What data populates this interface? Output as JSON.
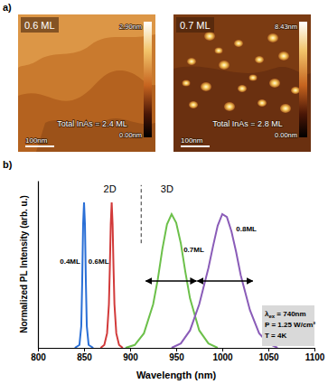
{
  "panel_labels": [
    "a)",
    "b)"
  ],
  "afm_images": [
    {
      "coverage": "0.6 ML",
      "colorbar_max": "2.90nm",
      "colorbar_min": "0.00nm",
      "total": "Total InAs = 2.4 ML",
      "scale_bar": "100nm"
    },
    {
      "coverage": "0.7 ML",
      "colorbar_max": "8.43nm",
      "colorbar_min": "0.00nm",
      "total": "Total InAs = 2.8 ML",
      "scale_bar": "100nm"
    }
  ],
  "chart_data": {
    "type": "line",
    "xlabel": "Wavelength (nm)",
    "ylabel": "Normalized PL Intensity (arb. u.)",
    "xlim": [
      800,
      1100
    ],
    "xticks": [
      800,
      850,
      900,
      950,
      1000,
      1050,
      1100
    ],
    "ylim": [
      0,
      1.15
    ],
    "yticks": [],
    "tick_labels": "x",
    "series": [
      {
        "name": "0.4ML",
        "color": "#2a6fd6",
        "label_pos": [
          846,
          0.58
        ],
        "x": [
          840,
          845,
          847,
          848,
          849,
          850,
          851,
          852,
          853,
          855,
          860
        ],
        "values": [
          0,
          0.02,
          0.15,
          0.45,
          0.85,
          1.0,
          0.85,
          0.45,
          0.15,
          0.02,
          0
        ]
      },
      {
        "name": "0.6ML",
        "color": "#d23a3a",
        "label_pos": [
          877,
          0.58
        ],
        "x": [
          868,
          872,
          875,
          877,
          878,
          879,
          880,
          881,
          882,
          883,
          885,
          888,
          892
        ],
        "values": [
          0,
          0.02,
          0.1,
          0.3,
          0.55,
          0.85,
          1.0,
          0.85,
          0.55,
          0.3,
          0.1,
          0.02,
          0
        ]
      },
      {
        "name": "0.7ML",
        "color": "#6cc04a",
        "label_pos": [
          958,
          0.66
        ],
        "fwhm": [
          917,
          972
        ],
        "x": [
          895,
          905,
          915,
          925,
          930,
          935,
          940,
          945,
          950,
          955,
          960,
          965,
          975,
          985,
          995
        ],
        "values": [
          0,
          0.02,
          0.1,
          0.3,
          0.47,
          0.68,
          0.85,
          0.92,
          0.86,
          0.72,
          0.52,
          0.34,
          0.12,
          0.03,
          0
        ]
      },
      {
        "name": "0.8ML",
        "color": "#8a5cb8",
        "label_pos": [
          1015,
          0.8
        ],
        "fwhm": [
          973,
          1033
        ],
        "x": [
          945,
          955,
          965,
          975,
          985,
          990,
          995,
          1000,
          1005,
          1010,
          1015,
          1020,
          1030,
          1040,
          1050,
          1060
        ],
        "values": [
          0,
          0.03,
          0.12,
          0.3,
          0.55,
          0.7,
          0.84,
          0.92,
          0.9,
          0.8,
          0.66,
          0.5,
          0.26,
          0.1,
          0.03,
          0
        ]
      }
    ],
    "annotations": [
      {
        "text": "2D",
        "x": 878,
        "y": 1.07
      },
      {
        "text": "3D",
        "x": 940,
        "y": 1.07
      }
    ],
    "dividers": [
      {
        "x": 912,
        "from": 0.72,
        "to": 1.12,
        "line_style": "dashed"
      }
    ],
    "conditions": [
      {
        "symbol": "λ",
        "subscript": "ex",
        "text": " = 740nm"
      },
      {
        "text": "P = 1.25 W/cm²"
      },
      {
        "text": "T = 4K"
      }
    ]
  }
}
